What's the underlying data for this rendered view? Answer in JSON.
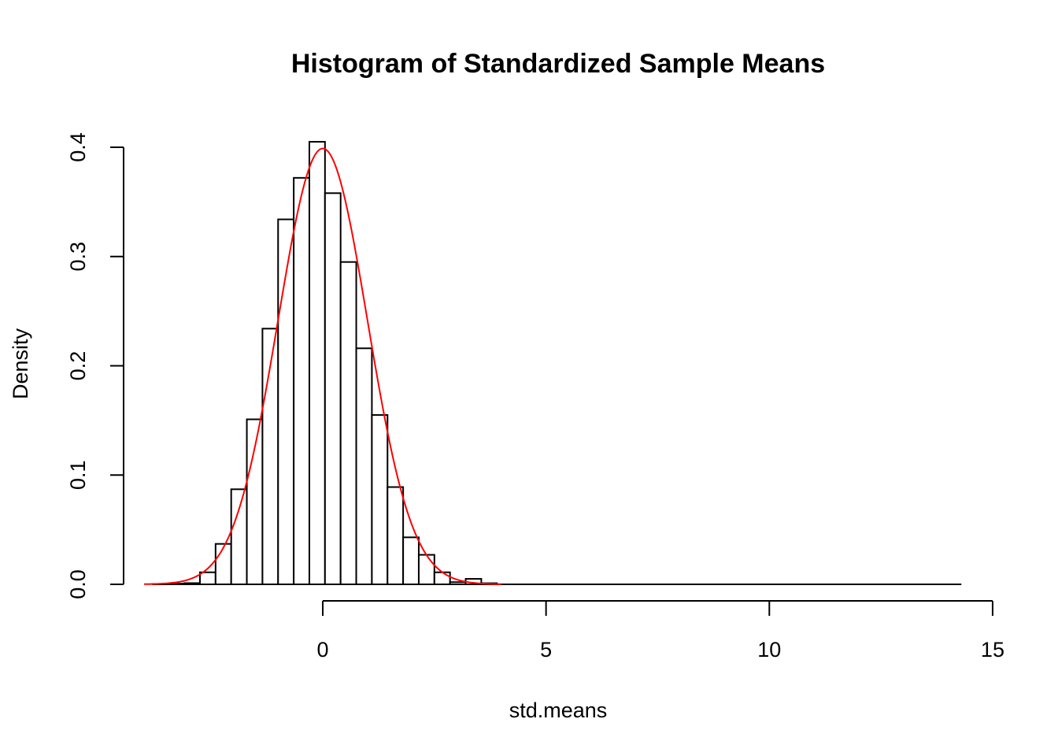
{
  "chart_data": {
    "type": "bar",
    "title": "Histogram of Standardized Sample Means",
    "xlabel": "std.means",
    "ylabel": "Density",
    "xlim": [
      -4.5,
      15
    ],
    "ylim": [
      0,
      0.4
    ],
    "x_ticks": [
      0,
      5,
      10,
      15
    ],
    "x_tick_labels": [
      "0",
      "5",
      "10",
      "15"
    ],
    "y_ticks": [
      0.0,
      0.1,
      0.2,
      0.3,
      0.4
    ],
    "y_tick_labels": [
      "0.0",
      "0.1",
      "0.2",
      "0.3",
      "0.4"
    ],
    "grid": false,
    "bin_width": 0.35,
    "bin_edges_start": -3.8,
    "bin_edges_end": 14.3,
    "histogram_bars": [
      {
        "x0": -3.8,
        "x1": -3.45,
        "density": 0.0003
      },
      {
        "x0": -3.45,
        "x1": -3.1,
        "density": 0.0007
      },
      {
        "x0": -3.1,
        "x1": -2.75,
        "density": 0.0011
      },
      {
        "x0": -2.75,
        "x1": -2.4,
        "density": 0.011
      },
      {
        "x0": -2.4,
        "x1": -2.05,
        "density": 0.037
      },
      {
        "x0": -2.05,
        "x1": -1.7,
        "density": 0.087
      },
      {
        "x0": -1.7,
        "x1": -1.35,
        "density": 0.151
      },
      {
        "x0": -1.35,
        "x1": -1.0,
        "density": 0.234
      },
      {
        "x0": -1.0,
        "x1": -0.65,
        "density": 0.334
      },
      {
        "x0": -0.65,
        "x1": -0.3,
        "density": 0.372
      },
      {
        "x0": -0.3,
        "x1": 0.05,
        "density": 0.405
      },
      {
        "x0": 0.05,
        "x1": 0.4,
        "density": 0.358
      },
      {
        "x0": 0.4,
        "x1": 0.75,
        "density": 0.295
      },
      {
        "x0": 0.75,
        "x1": 1.1,
        "density": 0.216
      },
      {
        "x0": 1.1,
        "x1": 1.45,
        "density": 0.155
      },
      {
        "x0": 1.45,
        "x1": 1.8,
        "density": 0.089
      },
      {
        "x0": 1.8,
        "x1": 2.15,
        "density": 0.043
      },
      {
        "x0": 2.15,
        "x1": 2.5,
        "density": 0.027
      },
      {
        "x0": 2.5,
        "x1": 2.85,
        "density": 0.011
      },
      {
        "x0": 2.85,
        "x1": 3.2,
        "density": 0.002
      },
      {
        "x0": 3.2,
        "x1": 3.55,
        "density": 0.005
      },
      {
        "x0": 3.55,
        "x1": 3.9,
        "density": 0.001
      }
    ],
    "overlay": {
      "type": "line",
      "color": "#ff0000",
      "x_range": [
        -4.0,
        4.0
      ],
      "mean": 0,
      "sd": 1
    }
  }
}
